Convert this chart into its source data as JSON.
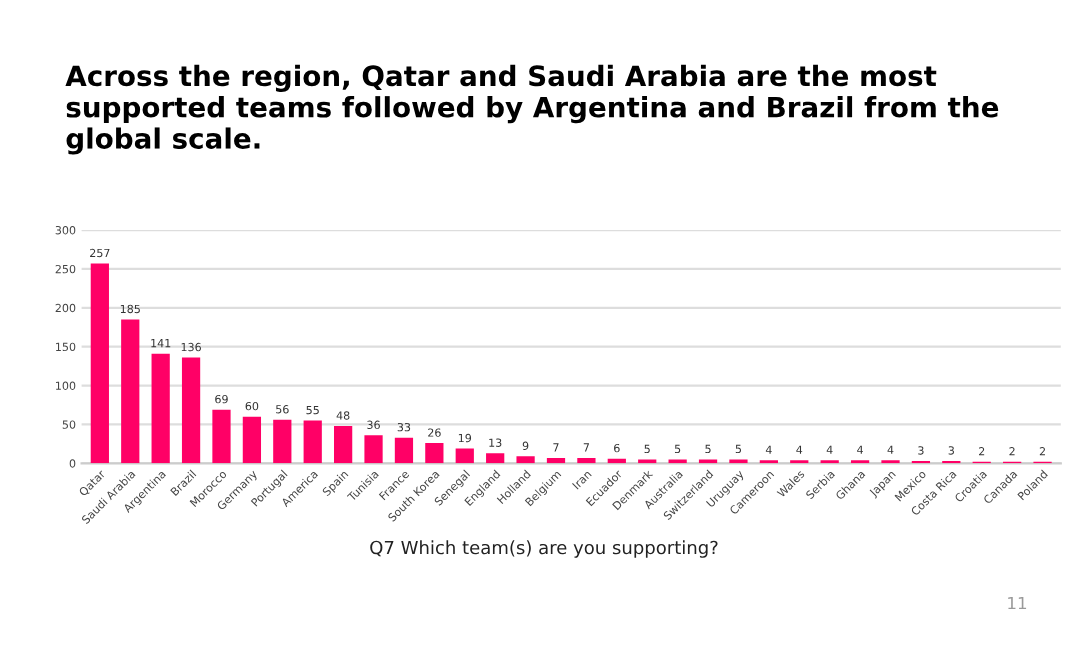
{
  "chart_data": {
    "type": "bar",
    "title": "Across the region, Qatar and Saudi Arabia are the most supported teams followed by Argentina and Brazil from the global scale.",
    "xlabel": "Q7 Which team(s) are you supporting?",
    "categories": [
      "Qatar",
      "Saudi Arabia",
      "Argentina",
      "Brazil",
      "Morocco",
      "Germany",
      "Portugal",
      "America",
      "Spain",
      "Tunisia",
      "France",
      "South Korea",
      "Senegal",
      "England",
      "Holland",
      "Belgium",
      "Iran",
      "Ecuador",
      "Denmark",
      "Australia",
      "Switzerland",
      "Uruguay",
      "Cameroon",
      "Wales",
      "Serbia",
      "Ghana",
      "Japan",
      "Mexico",
      "Costa Rica",
      "Croatia",
      "Canada",
      "Poland"
    ],
    "values": [
      257,
      185,
      141,
      136,
      69,
      60,
      56,
      55,
      48,
      36,
      33,
      26,
      19,
      13,
      9,
      7,
      7,
      6,
      5,
      5,
      5,
      5,
      4,
      4,
      4,
      4,
      4,
      3,
      3,
      2,
      2,
      2
    ],
    "color": "#ff0066",
    "ylim": [
      0,
      300
    ],
    "yticks": [
      0,
      50,
      100,
      150,
      200,
      250,
      300
    ],
    "grid": "y",
    "data_labels": true,
    "annotations": [
      "11"
    ]
  }
}
